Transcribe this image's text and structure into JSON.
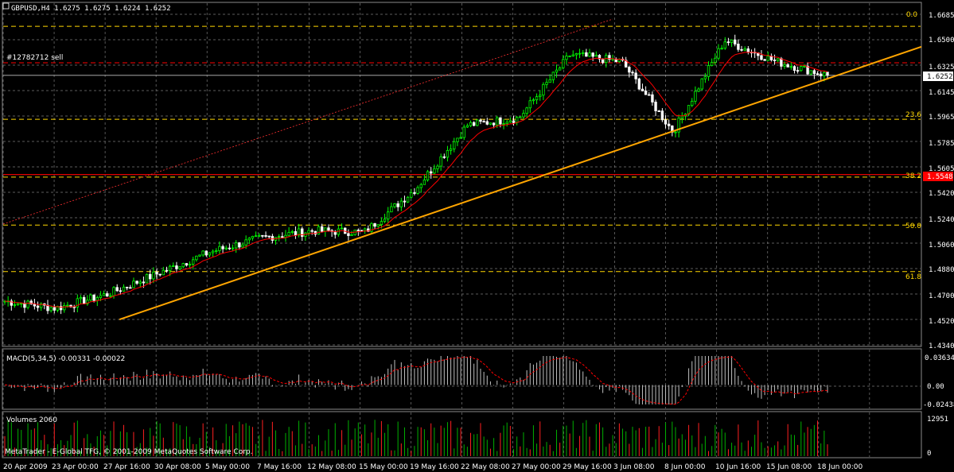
{
  "main_panel": {
    "header": "GBPUSD,H4  1.6275 1.6275 1.6224 1.6252",
    "order_label": "#12782712 sell",
    "price_ticks": [
      "1.6685",
      "1.6500",
      "1.6325",
      "1.6145",
      "1.5965",
      "1.5785",
      "1.5605",
      "1.5420",
      "1.5240",
      "1.5060",
      "1.4880",
      "1.4700",
      "1.4520",
      "1.4340"
    ],
    "current_price_label": "1.6252",
    "order_price_label": "1.5548",
    "fib_labels": [
      "0.0",
      "23.6",
      "38.2",
      "50.0",
      "61.8"
    ]
  },
  "macd_panel": {
    "header": "MACD(5,34,5) -0.00331 -0.00022",
    "ticks": [
      "0.03634",
      "0.00",
      "-0.02438"
    ]
  },
  "volume_panel": {
    "header": "Volumes 2060",
    "ticks": [
      "12951",
      "0"
    ],
    "footer": "MetaTrader - E-Global TFG, © 2001-2009 MetaQuotes Software Corp."
  },
  "time_ticks": [
    "20 Apr 2009",
    "23 Apr 00:00",
    "27 Apr 16:00",
    "30 Apr 08:00",
    "5 May 00:00",
    "7 May 16:00",
    "12 May 08:00",
    "15 May 00:00",
    "19 May 16:00",
    "22 May 08:00",
    "27 May 00:00",
    "29 May 16:00",
    "3 Jun 08:00",
    "8 Jun 00:00",
    "10 Jun 16:00",
    "15 Jun 08:00",
    "18 Jun 00:00"
  ],
  "colors": {
    "background": "#000000",
    "grid": "#7a7a7a",
    "bull_candle": "#00ff00",
    "bear_candle": "#ffffff",
    "ma_line": "#ff0000",
    "trendline": "#ffa500",
    "fib_line": "#ffd700",
    "order_line": "#ff0000",
    "text": "#ffffff",
    "macd_hist": "#c0c0c0",
    "volume_bar": "#00b000"
  },
  "chart_data": {
    "type": "candlestick",
    "symbol": "GBPUSD",
    "timeframe": "H4",
    "ylim": [
      1.434,
      1.6685
    ],
    "x": [
      "20 Apr 2009",
      "23 Apr 00:00",
      "27 Apr 16:00",
      "30 Apr 08:00",
      "5 May 00:00",
      "7 May 16:00",
      "12 May 08:00",
      "15 May 00:00",
      "19 May 16:00",
      "22 May 08:00",
      "27 May 00:00",
      "29 May 16:00",
      "3 Jun 08:00",
      "8 Jun 00:00",
      "10 Jun 16:00",
      "15 Jun 08:00",
      "18 Jun 00:00"
    ],
    "close_approx": [
      1.465,
      1.46,
      1.47,
      1.485,
      1.5,
      1.51,
      1.515,
      1.514,
      1.545,
      1.59,
      1.595,
      1.64,
      1.635,
      1.585,
      1.65,
      1.635,
      1.6252
    ],
    "last": {
      "open": 1.6275,
      "high": 1.6275,
      "low": 1.6224,
      "close": 1.6252
    },
    "sell_order_price": 1.5548,
    "fibonacci_levels": [
      {
        "label": "0.0",
        "price": 1.66
      },
      {
        "label": "23.6",
        "price": 1.594
      },
      {
        "label": "38.2",
        "price": 1.553
      },
      {
        "label": "50.0",
        "price": 1.519
      },
      {
        "label": "61.8",
        "price": 1.486
      }
    ],
    "trendline": {
      "from": {
        "x": "27 Apr 16:00",
        "price": 1.452
      },
      "to": {
        "x": "18 Jun 00:00",
        "price": 1.623
      }
    },
    "macd": {
      "params": "5,34,5",
      "main": -0.00331,
      "signal": -0.00022,
      "ylim": [
        -0.02438,
        0.03634
      ]
    },
    "volumes": {
      "last": 2060,
      "max": 12951
    }
  }
}
